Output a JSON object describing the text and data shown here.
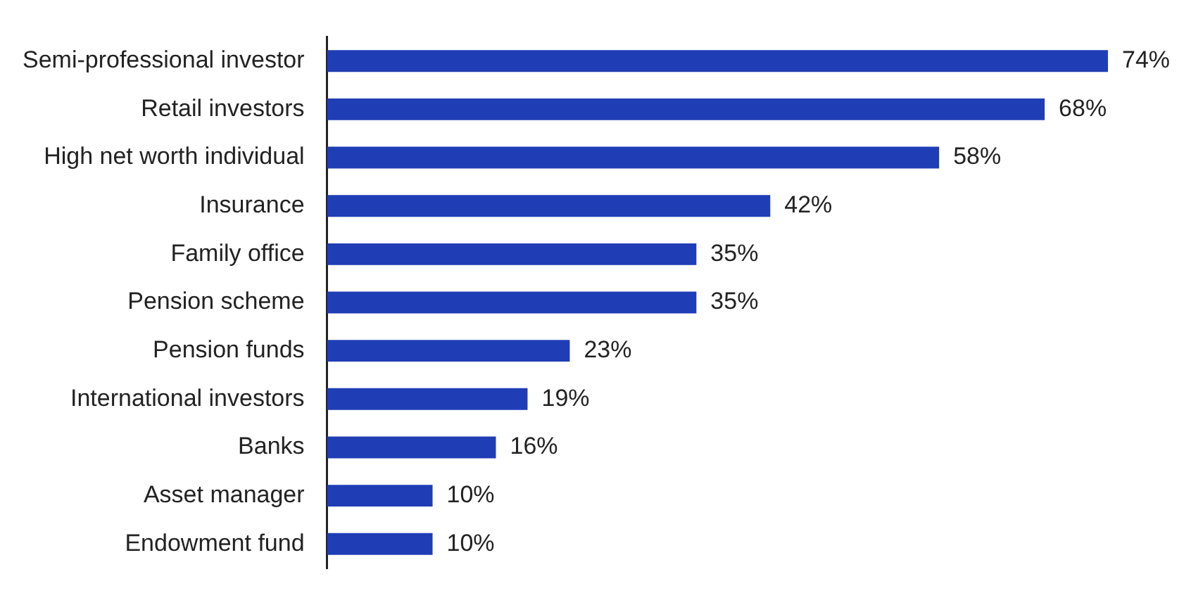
{
  "chart_data": {
    "type": "bar",
    "orientation": "horizontal",
    "categories": [
      "Semi-professional investor",
      "Retail investors",
      "High net worth individual",
      "Insurance",
      "Family office",
      "Pension scheme",
      "Pension funds",
      "International investors",
      "Banks",
      "Asset manager",
      "Endowment fund"
    ],
    "values": [
      74,
      68,
      58,
      42,
      35,
      35,
      23,
      19,
      16,
      10,
      10
    ],
    "value_labels": [
      "74%",
      "68%",
      "58%",
      "42%",
      "35%",
      "35%",
      "23%",
      "19%",
      "16%",
      "10%",
      "10%"
    ],
    "color": "#1f3db5"
  }
}
